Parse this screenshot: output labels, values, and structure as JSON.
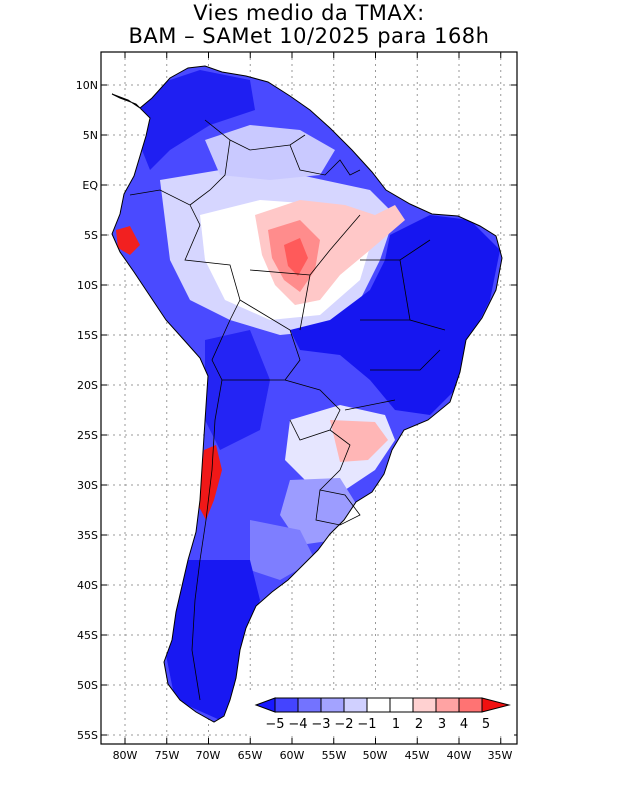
{
  "title": {
    "line1": "Vies medio da TMAX:",
    "line2": "BAM – SAMet 10/2025  para 168h"
  },
  "axes": {
    "lat_labels": [
      "10N",
      "5N",
      "EQ",
      "5S",
      "10S",
      "15S",
      "20S",
      "25S",
      "30S",
      "35S",
      "40S",
      "45S",
      "50S",
      "55S"
    ],
    "lon_labels": [
      "80W",
      "75W",
      "70W",
      "65W",
      "60W",
      "55W",
      "50W",
      "45W",
      "40W",
      "35W"
    ]
  },
  "colorbar": {
    "labels": [
      "−5",
      "−4",
      "−3",
      "−2",
      "−1",
      "1",
      "2",
      "3",
      "4",
      "5"
    ],
    "colors": [
      "#1818ff",
      "#4444ff",
      "#7373ff",
      "#a3a3ff",
      "#d0d0ff",
      "#ffffff",
      "#ffd1d1",
      "#ffa3a3",
      "#ff7373",
      "#ff4040",
      "#f01010"
    ]
  },
  "colors": {
    "strong_cool": "#1414f0",
    "mid_cool": "#4848ff",
    "light_cool": "#8e8eff",
    "pale_cool": "#cfcfff",
    "pale_warm": "#ffd0d0",
    "mid_warm": "#ff8f8f",
    "strong_warm": "#f01818"
  }
}
